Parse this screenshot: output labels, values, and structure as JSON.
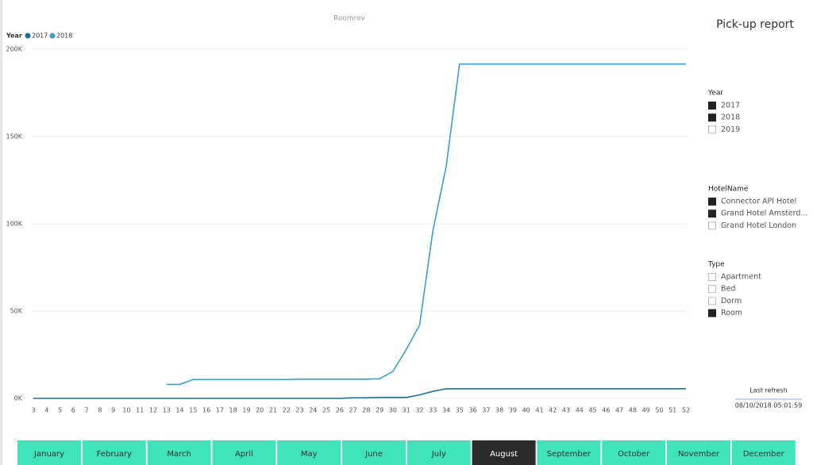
{
  "report_title": "Pick-up report",
  "chart_data": {
    "type": "line",
    "title": "Roomrev",
    "legend_title": "Year",
    "categories": [
      "3",
      "4",
      "5",
      "6",
      "7",
      "8",
      "9",
      "10",
      "11",
      "12",
      "13",
      "14",
      "15",
      "16",
      "17",
      "18",
      "19",
      "20",
      "21",
      "22",
      "23",
      "24",
      "25",
      "26",
      "27",
      "28",
      "29",
      "30",
      "31",
      "32",
      "33",
      "34",
      "35",
      "36",
      "37",
      "38",
      "39",
      "40",
      "41",
      "42",
      "43",
      "44",
      "45",
      "46",
      "47",
      "48",
      "49",
      "50",
      "51",
      "52"
    ],
    "series": [
      {
        "name": "2017",
        "color": "#1f6e9c",
        "values": [
          0,
          0,
          0,
          0,
          0,
          0,
          0,
          0,
          0,
          0,
          0,
          0,
          0,
          0,
          0,
          0,
          0,
          0,
          0,
          0,
          0,
          0,
          0,
          0,
          300,
          300,
          500,
          500,
          500,
          2000,
          4000,
          5500,
          5500,
          5500,
          5500,
          5500,
          5500,
          5500,
          5500,
          5500,
          5500,
          5500,
          5500,
          5500,
          5500,
          5500,
          5500,
          5500,
          5500,
          5500
        ]
      },
      {
        "name": "2018",
        "color": "#3a9fd0",
        "values": [
          null,
          null,
          null,
          null,
          null,
          null,
          null,
          null,
          null,
          null,
          8000,
          8000,
          10800,
          10800,
          10800,
          10800,
          10800,
          10800,
          10800,
          10800,
          11000,
          11000,
          11000,
          11000,
          11000,
          11000,
          11200,
          15500,
          28000,
          42000,
          96000,
          133000,
          191500,
          191500,
          191500,
          191500,
          191500,
          191500,
          191500,
          191500,
          191500,
          191500,
          191500,
          191500,
          191500,
          191500,
          191500,
          191500,
          191500,
          191500
        ]
      }
    ],
    "ylim": [
      0,
      200000
    ],
    "yticks": [
      {
        "value": 0,
        "label": "0K"
      },
      {
        "value": 50000,
        "label": "50K"
      },
      {
        "value": 100000,
        "label": "100K"
      },
      {
        "value": 150000,
        "label": "150K"
      },
      {
        "value": 200000,
        "label": "200K"
      }
    ],
    "grid": true
  },
  "slicers": [
    {
      "title": "Year",
      "items": [
        {
          "label": "2017",
          "checked": true
        },
        {
          "label": "2018",
          "checked": true
        },
        {
          "label": "2019",
          "checked": false
        }
      ]
    },
    {
      "title": "HotelName",
      "items": [
        {
          "label": "Connector API Hotel",
          "checked": true
        },
        {
          "label": "Grand Hotel Amsterd...",
          "checked": true
        },
        {
          "label": "Grand Hotel London",
          "checked": false
        }
      ]
    },
    {
      "title": "Type",
      "items": [
        {
          "label": "Apartment",
          "checked": false
        },
        {
          "label": "Bed",
          "checked": false
        },
        {
          "label": "Dorm",
          "checked": false
        },
        {
          "label": "Room",
          "checked": true
        }
      ]
    }
  ],
  "refresh": {
    "label": "Last refresh",
    "time": "08/10/2018 05:01:59"
  },
  "months": {
    "items": [
      "January",
      "February",
      "March",
      "April",
      "May",
      "June",
      "July",
      "August",
      "September",
      "October",
      "November",
      "December"
    ],
    "selected": "August"
  }
}
